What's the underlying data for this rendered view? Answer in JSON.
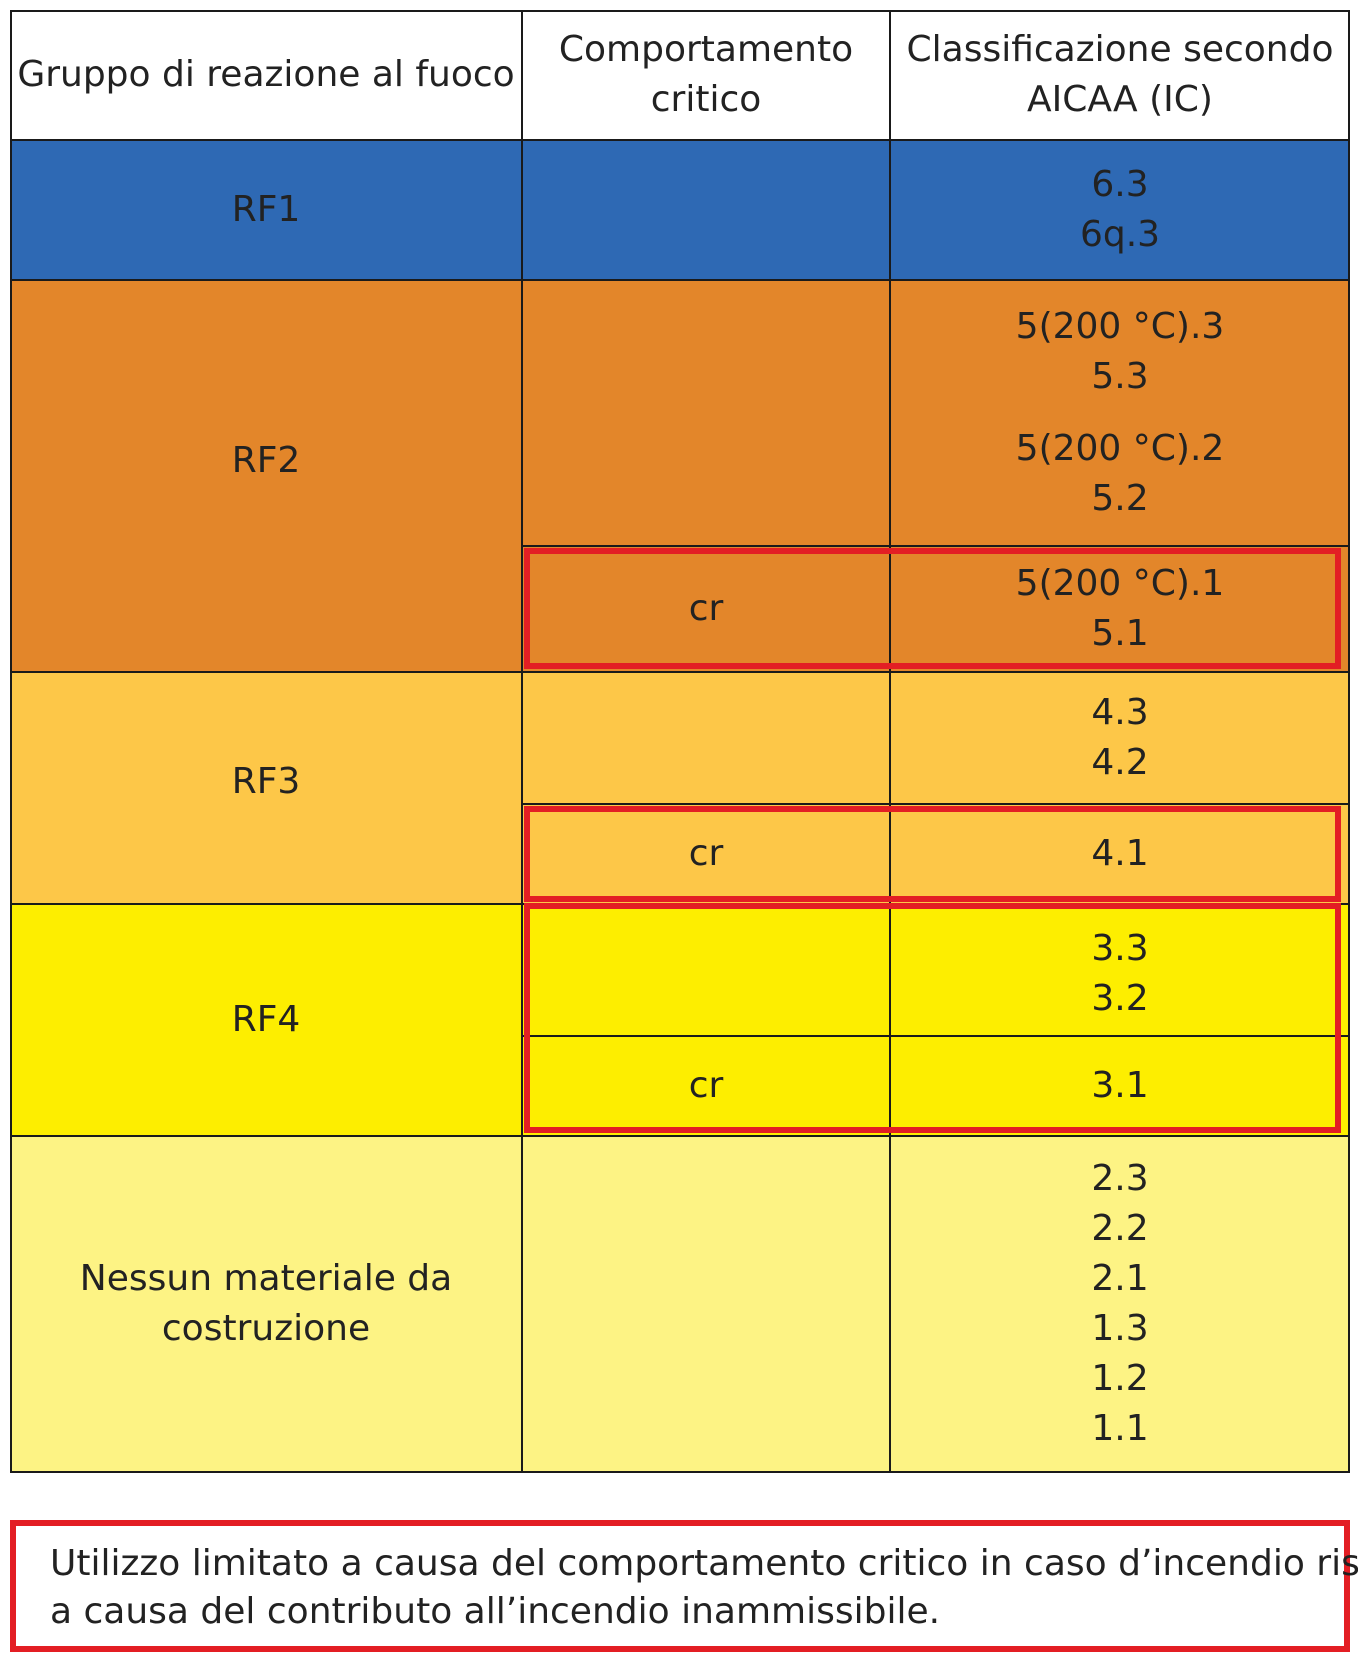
{
  "header": {
    "group": "Gruppo di reazione al fuoco",
    "behavior": [
      "Comportamento",
      "critico"
    ],
    "classification": [
      "Classificazione secondo",
      "AICAA (IC)"
    ]
  },
  "colors": {
    "rf1": "#2e69b4",
    "rf2": "#e3862a",
    "rf3": "#fdc748",
    "rf4": "#fdee00",
    "none": "#fdf384",
    "highlight": "#e31e24"
  },
  "rows": {
    "rf1": {
      "group": "RF1",
      "classes": [
        "6.3",
        "6q.3"
      ]
    },
    "rf2": {
      "group": "RF2",
      "classes_a": [
        "5(200 °C).3",
        "5.3"
      ],
      "classes_b": [
        "5(200 °C).2",
        "5.2"
      ],
      "critical": {
        "behavior": "cr",
        "classes": [
          "5(200 °C).1",
          "5.1"
        ]
      }
    },
    "rf3": {
      "group": "RF3",
      "classes": [
        "4.3",
        "4.2"
      ],
      "critical": {
        "behavior": "cr",
        "classes": [
          "4.1"
        ]
      }
    },
    "rf4": {
      "group": "RF4",
      "classes": [
        "3.3",
        "3.2"
      ],
      "critical": {
        "behavior": "cr",
        "classes": [
          "3.1"
        ]
      }
    },
    "none": {
      "group": [
        "Nessun materiale da",
        "costruzione"
      ],
      "classes": [
        "2.3",
        "2.2",
        "2.1",
        "1.3",
        "1.2",
        "1.1"
      ]
    }
  },
  "legend": {
    "lines": [
      "Utilizzo limitato a causa del comportamento critico in caso d’incendio risp.",
      "a causa del contributo all’incendio inammissibile."
    ]
  }
}
